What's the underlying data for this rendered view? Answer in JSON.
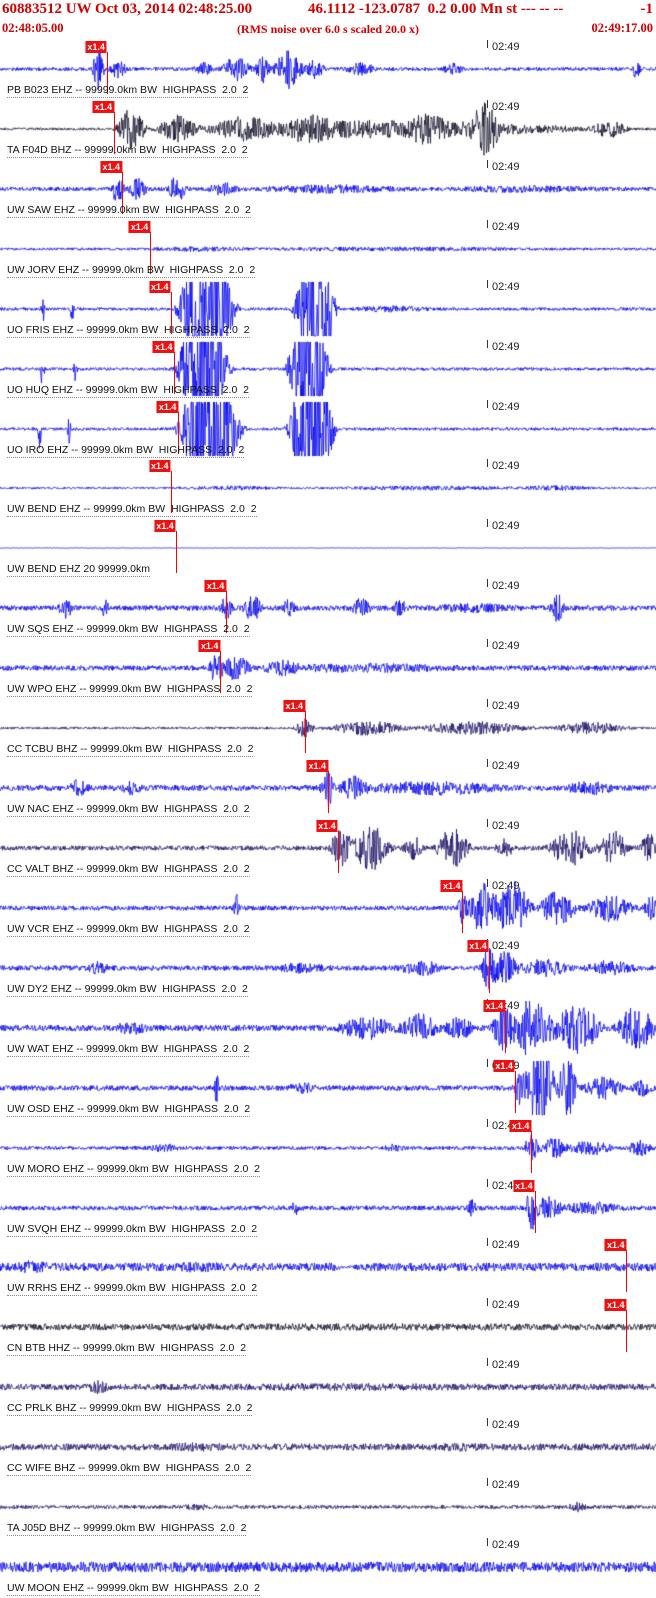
{
  "header": {
    "event_info": "60883512 UW Oct 03, 2014 02:48:25.00",
    "location_info": "46.1112 -123.0787  0.2 0.00 Mn st --- -- --",
    "right_info": "-1",
    "start_time": "02:48:05.00",
    "scale_note": "(RMS noise over 6.0 s scaled 20.0 x)",
    "end_time": "02:49:17.00"
  },
  "tick_label": "02:49",
  "pick_label": "x1.4",
  "colors": {
    "blue": "#0000ee",
    "black": "#101028",
    "navy": "#1a1066",
    "pick": "#ff0000",
    "header_text": "#d40000"
  },
  "traces": [
    {
      "label": "PB B023 EHZ -- 99999.0km BW  HIGHPASS  2.0  2",
      "color": "blue",
      "pick_x": 0.163,
      "wave": {
        "base": 0.07,
        "bursts": [
          [
            0.15,
            0.012,
            0.85
          ],
          [
            0.18,
            0.02,
            0.3
          ],
          [
            0.31,
            0.02,
            0.22
          ],
          [
            0.36,
            0.03,
            0.45
          ],
          [
            0.4,
            0.015,
            0.5
          ],
          [
            0.44,
            0.03,
            0.7
          ],
          [
            0.48,
            0.02,
            0.35
          ],
          [
            0.55,
            0.03,
            0.22
          ],
          [
            0.69,
            0.02,
            0.18
          ],
          [
            0.97,
            0.012,
            0.28
          ]
        ]
      }
    },
    {
      "label": "TA F04D BHZ -- 99999.0km BW  HIGHPASS  2.0  2",
      "color": "black",
      "pick_x": 0.174,
      "wave": {
        "base": 0.05,
        "bursts": [
          [
            0.58,
            0.42,
            0.3
          ],
          [
            0.2,
            0.03,
            0.75
          ],
          [
            0.27,
            0.04,
            0.45
          ],
          [
            0.37,
            0.06,
            0.3
          ],
          [
            0.47,
            0.05,
            0.28
          ],
          [
            0.65,
            0.04,
            0.3
          ],
          [
            0.74,
            0.03,
            0.8
          ],
          [
            0.93,
            0.035,
            0.3
          ]
        ]
      }
    },
    {
      "label": "UW SAW EHZ -- 99999.0km BW  HIGHPASS  2.0  2",
      "color": "blue",
      "pick_x": 0.186,
      "wave": {
        "base": 0.08,
        "bursts": [
          [
            0.18,
            0.012,
            0.7
          ],
          [
            0.21,
            0.02,
            0.35
          ],
          [
            0.27,
            0.018,
            0.5
          ],
          [
            0.34,
            0.03,
            0.2
          ],
          [
            0.5,
            0.15,
            0.1
          ],
          [
            0.8,
            0.15,
            0.07
          ]
        ]
      }
    },
    {
      "label": "UW JORV EHZ -- 99999.0km BW  HIGHPASS  2.0  2",
      "color": "blue",
      "pick_x": 0.229,
      "wave": {
        "base": 0.05,
        "bursts": [
          [
            0.3,
            0.1,
            0.05
          ],
          [
            0.6,
            0.3,
            0.04
          ]
        ]
      }
    },
    {
      "label": "UO FRIS EHZ -- 99999.0km BW  HIGHPASS  2.0  2",
      "color": "blue",
      "pick_x": 0.26,
      "wave": {
        "base": 0.06,
        "bursts": [
          [
            0.065,
            0.004,
            0.7
          ],
          [
            0.11,
            0.004,
            0.5
          ],
          [
            0.315,
            0.055,
            3.2
          ],
          [
            0.48,
            0.04,
            3.2
          ],
          [
            0.6,
            0.08,
            0.08
          ]
        ]
      }
    },
    {
      "label": "UO HUQ EHZ -- 99999.0km BW  HIGHPASS  2.0  2",
      "color": "blue",
      "pick_x": 0.266,
      "wave": {
        "base": 0.06,
        "bursts": [
          [
            0.065,
            0.004,
            0.85
          ],
          [
            0.115,
            0.004,
            0.55
          ],
          [
            0.31,
            0.05,
            3.2
          ],
          [
            0.47,
            0.04,
            3.2
          ]
        ]
      }
    },
    {
      "label": "UO IRO EHZ -- 99999.0km BW  HIGHPASS  2.0  2",
      "color": "blue",
      "pick_x": 0.272,
      "wave": {
        "base": 0.06,
        "bursts": [
          [
            0.06,
            0.004,
            0.9
          ],
          [
            0.105,
            0.004,
            0.5
          ],
          [
            0.32,
            0.06,
            3.2
          ],
          [
            0.475,
            0.045,
            3.2
          ]
        ]
      }
    },
    {
      "label": "UW BEND EHZ -- 99999.0km BW  HIGHPASS  2.0  2",
      "color": "blue",
      "pick_x": 0.26,
      "wave": {
        "base": 0.04,
        "bursts": [
          [
            0.35,
            0.1,
            0.05
          ],
          [
            0.65,
            0.2,
            0.05
          ],
          [
            0.85,
            0.08,
            0.06
          ]
        ]
      }
    },
    {
      "label": "UW BEND EHZ 20 99999.0km",
      "color": "blue",
      "pick_x": 0.268,
      "wave": {
        "base": 0.01,
        "bursts": []
      }
    },
    {
      "label": "UW SQS EHZ -- 99999.0km BW  HIGHPASS  2.0  2",
      "color": "blue",
      "pick_x": 0.345,
      "wave": {
        "base": 0.1,
        "bursts": [
          [
            0.1,
            0.014,
            0.35
          ],
          [
            0.16,
            0.01,
            0.25
          ],
          [
            0.345,
            0.012,
            0.55
          ],
          [
            0.385,
            0.02,
            0.42
          ],
          [
            0.44,
            0.015,
            0.25
          ],
          [
            0.55,
            0.02,
            0.3
          ],
          [
            0.61,
            0.015,
            0.25
          ],
          [
            0.72,
            0.08,
            0.1
          ],
          [
            0.85,
            0.015,
            0.45
          ]
        ]
      }
    },
    {
      "label": "UW WPO EHZ -- 99999.0km BW  HIGHPASS  2.0  2",
      "color": "blue",
      "pick_x": 0.336,
      "wave": {
        "base": 0.1,
        "bursts": [
          [
            0.33,
            0.014,
            0.6
          ],
          [
            0.36,
            0.03,
            0.42
          ],
          [
            0.43,
            0.04,
            0.2
          ],
          [
            0.56,
            0.18,
            0.1
          ]
        ]
      }
    },
    {
      "label": "CC TCBU BHZ -- 99999.0km BW  HIGHPASS  2.0  2",
      "color": "navy",
      "pick_x": 0.465,
      "wave": {
        "base": 0.045,
        "bursts": [
          [
            0.465,
            0.02,
            0.33
          ],
          [
            0.56,
            0.08,
            0.25
          ],
          [
            0.72,
            0.12,
            0.22
          ],
          [
            0.9,
            0.08,
            0.2
          ]
        ]
      }
    },
    {
      "label": "UW NAC EHZ -- 99999.0km BW  HIGHPASS  2.0  2",
      "color": "blue",
      "pick_x": 0.5,
      "wave": {
        "base": 0.11,
        "bursts": [
          [
            0.12,
            0.02,
            0.25
          ],
          [
            0.2,
            0.02,
            0.2
          ],
          [
            0.5,
            0.015,
            0.6
          ],
          [
            0.54,
            0.03,
            0.4
          ],
          [
            0.66,
            0.14,
            0.18
          ],
          [
            0.9,
            0.05,
            0.18
          ]
        ]
      }
    },
    {
      "label": "CC VALT BHZ -- 99999.0km BW  HIGHPASS  2.0  2",
      "color": "navy",
      "pick_x": 0.515,
      "wave": {
        "base": 0.09,
        "bursts": [
          [
            0.52,
            0.025,
            0.65
          ],
          [
            0.565,
            0.04,
            0.8
          ],
          [
            0.63,
            0.02,
            0.4
          ],
          [
            0.69,
            0.035,
            0.7
          ],
          [
            0.77,
            0.02,
            0.28
          ],
          [
            0.87,
            0.045,
            0.65
          ],
          [
            0.935,
            0.03,
            0.6
          ],
          [
            0.99,
            0.02,
            0.5
          ]
        ]
      }
    },
    {
      "label": "UW VCR EHZ -- 99999.0km BW  HIGHPASS  2.0  2",
      "color": "blue",
      "pick_x": 0.705,
      "wave": {
        "base": 0.09,
        "bursts": [
          [
            0.36,
            0.006,
            0.5
          ],
          [
            0.705,
            0.01,
            0.6
          ],
          [
            0.735,
            0.03,
            0.9
          ],
          [
            0.78,
            0.04,
            1.0
          ],
          [
            0.85,
            0.04,
            0.6
          ],
          [
            0.93,
            0.05,
            0.45
          ],
          [
            0.995,
            0.02,
            0.4
          ]
        ]
      }
    },
    {
      "label": "UW DY2 EHZ -- 99999.0km BW  HIGHPASS  2.0  2",
      "color": "blue",
      "pick_x": 0.745,
      "wave": {
        "base": 0.1,
        "bursts": [
          [
            0.15,
            0.02,
            0.18
          ],
          [
            0.46,
            0.05,
            0.13
          ],
          [
            0.64,
            0.04,
            0.25
          ],
          [
            0.745,
            0.015,
            0.9
          ],
          [
            0.77,
            0.03,
            0.55
          ],
          [
            0.83,
            0.05,
            0.28
          ],
          [
            0.93,
            0.05,
            0.22
          ]
        ]
      }
    },
    {
      "label": "UW WAT EHZ -- 99999.0km BW  HIGHPASS  2.0  2",
      "color": "blue",
      "pick_x": 0.77,
      "wave": {
        "base": 0.12,
        "bursts": [
          [
            0.2,
            0.03,
            0.18
          ],
          [
            0.56,
            0.06,
            0.35
          ],
          [
            0.64,
            0.04,
            0.45
          ],
          [
            0.7,
            0.03,
            0.35
          ],
          [
            0.765,
            0.02,
            0.8
          ],
          [
            0.81,
            0.05,
            1.0
          ],
          [
            0.88,
            0.05,
            0.9
          ],
          [
            0.97,
            0.04,
            0.8
          ]
        ]
      }
    },
    {
      "label": "UW OSD EHZ -- 99999.0km BW  HIGHPASS  2.0  2",
      "color": "blue",
      "pick_x": 0.785,
      "wave": {
        "base": 0.1,
        "bursts": [
          [
            0.33,
            0.006,
            0.45
          ],
          [
            0.46,
            0.03,
            0.13
          ],
          [
            0.795,
            0.015,
            0.8
          ],
          [
            0.825,
            0.03,
            1.8
          ],
          [
            0.865,
            0.02,
            1.2
          ],
          [
            0.92,
            0.04,
            0.35
          ],
          [
            0.98,
            0.02,
            0.28
          ]
        ]
      }
    },
    {
      "label": "UW MORO EHZ -- 99999.0km BW  HIGHPASS  2.0  2",
      "color": "blue",
      "pick_x": 0.81,
      "wave": {
        "base": 0.07,
        "bursts": [
          [
            0.25,
            0.03,
            0.1
          ],
          [
            0.6,
            0.02,
            0.1
          ],
          [
            0.81,
            0.015,
            0.5
          ],
          [
            0.845,
            0.03,
            0.33
          ],
          [
            0.9,
            0.05,
            0.22
          ],
          [
            0.975,
            0.025,
            0.28
          ]
        ]
      }
    },
    {
      "label": "UW SVQH EHZ -- 99999.0km BW  HIGHPASS  2.0  2",
      "color": "blue",
      "pick_x": 0.815,
      "wave": {
        "base": 0.09,
        "bursts": [
          [
            0.45,
            0.006,
            0.3
          ],
          [
            0.72,
            0.01,
            0.28
          ],
          [
            0.81,
            0.012,
            0.85
          ],
          [
            0.835,
            0.03,
            0.38
          ],
          [
            0.9,
            0.06,
            0.18
          ]
        ]
      }
    },
    {
      "label": "UW RRHS EHZ -- 99999.0km BW  HIGHPASS  2.0  2",
      "color": "blue",
      "pick_x": 0.955,
      "wave": {
        "base": 0.16,
        "bursts": [
          [
            0.05,
            0.03,
            0.1
          ],
          [
            0.3,
            0.05,
            0.05
          ],
          [
            0.53,
            0.02,
            -0.12
          ]
        ]
      }
    },
    {
      "label": "CN BTB HHZ -- 99999.0km BW  HIGHPASS  2.0  2",
      "color": "black",
      "pick_x": 0.955,
      "wave": {
        "base": 0.12,
        "bursts": [
          [
            0.5,
            0.5,
            0.02
          ]
        ]
      }
    },
    {
      "label": "CC PRLK BHZ -- 99999.0km BW  HIGHPASS  2.0  2",
      "color": "navy",
      "pick_x": null,
      "wave": {
        "base": 0.12,
        "bursts": [
          [
            0.15,
            0.02,
            0.16
          ],
          [
            0.55,
            0.25,
            0.03
          ]
        ]
      }
    },
    {
      "label": "CC WIFE BHZ -- 99999.0km BW  HIGHPASS  2.0  2",
      "color": "navy",
      "pick_x": null,
      "wave": {
        "base": 0.13,
        "bursts": [
          [
            0.3,
            0.05,
            0.05
          ],
          [
            0.7,
            0.05,
            0.04
          ]
        ]
      }
    },
    {
      "label": "TA J05D BHZ -- 99999.0km BW  HIGHPASS  2.0  2",
      "color": "navy",
      "pick_x": null,
      "wave": {
        "base": 0.07,
        "bursts": [
          [
            0.3,
            0.03,
            0.07
          ],
          [
            0.88,
            0.02,
            0.14
          ]
        ]
      }
    },
    {
      "label": "UW MOON EHZ -- 99999.0km BW  HIGHPASS  2.0  2",
      "color": "blue",
      "pick_x": null,
      "wave": {
        "base": 0.2,
        "bursts": []
      }
    }
  ]
}
